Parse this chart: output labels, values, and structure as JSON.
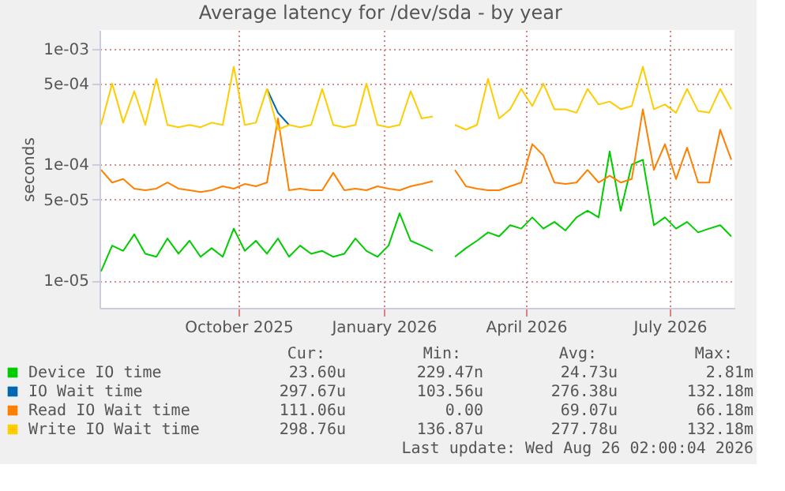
{
  "chart_data": {
    "type": "line",
    "title": "Average latency for /dev/sda - by year",
    "ylabel": "seconds",
    "log": true,
    "grid": true,
    "legend": "bottom",
    "xlim": [
      "2025-07-20",
      "2026-08-26"
    ],
    "xticks": [
      {
        "value": "2025-10-16",
        "label": "October 2025"
      },
      {
        "value": "2026-01-16",
        "label": "January 2026"
      },
      {
        "value": "2026-04-16",
        "label": "April 2026"
      },
      {
        "value": "2026-07-16",
        "label": "July 2026"
      }
    ],
    "ylim": [
      5.8e-06,
      0.00145
    ],
    "yticks": [
      {
        "value": 1e-05,
        "label": "1e-05"
      },
      {
        "value": 5e-05,
        "label": "5e-05"
      },
      {
        "value": 0.0001,
        "label": "1e-04"
      },
      {
        "value": 0.0005,
        "label": "5e-04"
      },
      {
        "value": 0.001,
        "label": "1e-03"
      }
    ],
    "x": [
      "2025-07-21",
      "2025-07-28",
      "2025-08-04",
      "2025-08-11",
      "2025-08-18",
      "2025-08-25",
      "2025-09-01",
      "2025-09-08",
      "2025-09-15",
      "2025-09-22",
      "2025-09-29",
      "2025-10-06",
      "2025-10-13",
      "2025-10-20",
      "2025-10-27",
      "2025-11-03",
      "2025-11-10",
      "2025-11-17",
      "2025-11-24",
      "2025-12-01",
      "2025-12-08",
      "2025-12-15",
      "2025-12-22",
      "2025-12-29",
      "2026-01-05",
      "2026-01-12",
      "2026-01-19",
      "2026-01-26",
      "2026-02-02",
      "2026-02-09",
      "2026-02-16",
      "2026-02-23",
      "2026-03-02",
      "2026-03-09",
      "2026-03-16",
      "2026-03-23",
      "2026-03-30",
      "2026-04-06",
      "2026-04-13",
      "2026-04-20",
      "2026-04-27",
      "2026-05-04",
      "2026-05-11",
      "2026-05-18",
      "2026-05-25",
      "2026-06-01",
      "2026-06-08",
      "2026-06-15",
      "2026-06-22",
      "2026-06-29",
      "2026-07-06",
      "2026-07-13",
      "2026-07-20",
      "2026-07-27",
      "2026-08-03",
      "2026-08-10",
      "2026-08-17",
      "2026-08-24"
    ],
    "series": [
      {
        "name": "Device IO time",
        "color": "#00cc00",
        "values": [
          1.2e-05,
          2e-05,
          1.8e-05,
          2.5e-05,
          1.7e-05,
          1.6e-05,
          2.3e-05,
          1.7e-05,
          2.2e-05,
          1.6e-05,
          1.9e-05,
          1.6e-05,
          2.8e-05,
          1.8e-05,
          2.2e-05,
          1.7e-05,
          2.3e-05,
          1.6e-05,
          2e-05,
          1.7e-05,
          1.8e-05,
          1.6e-05,
          1.7e-05,
          2.3e-05,
          1.8e-05,
          1.6e-05,
          2e-05,
          3.8e-05,
          2.2e-05,
          2e-05,
          1.8e-05,
          null,
          1.6e-05,
          1.9e-05,
          2.2e-05,
          2.6e-05,
          2.4e-05,
          3e-05,
          2.8e-05,
          3.5e-05,
          2.8e-05,
          3.2e-05,
          2.7e-05,
          3.5e-05,
          4e-05,
          3.5e-05,
          0.00013,
          4e-05,
          0.0001,
          0.00011,
          3e-05,
          3.5e-05,
          2.8e-05,
          3.2e-05,
          2.6e-05,
          2.8e-05,
          3e-05,
          2.4e-05
        ]
      },
      {
        "name": "IO Wait time",
        "color": "#0066b3",
        "values": [
          null,
          null,
          null,
          null,
          null,
          null,
          null,
          null,
          null,
          null,
          null,
          null,
          null,
          null,
          null,
          0.00045,
          0.00028,
          0.00022,
          null,
          null,
          null,
          null,
          null,
          null,
          null,
          null,
          null,
          null,
          null,
          null,
          null,
          null,
          null,
          null,
          null,
          null,
          null,
          null,
          null,
          null,
          null,
          null,
          null,
          null,
          null,
          null,
          null,
          null,
          null,
          null,
          null,
          null,
          null,
          null,
          null,
          null,
          null,
          null
        ]
      },
      {
        "name": "Read IO Wait time",
        "color": "#ff8000",
        "values": [
          9e-05,
          7e-05,
          7.5e-05,
          6.2e-05,
          6e-05,
          6.2e-05,
          7e-05,
          6.2e-05,
          6e-05,
          5.8e-05,
          6e-05,
          6.5e-05,
          6.2e-05,
          6.8e-05,
          6.5e-05,
          7e-05,
          0.00025,
          6e-05,
          6.2e-05,
          6e-05,
          6e-05,
          8.5e-05,
          6e-05,
          6.2e-05,
          6e-05,
          6.5e-05,
          6.2e-05,
          6e-05,
          6.5e-05,
          6.8e-05,
          7.2e-05,
          null,
          9e-05,
          6.5e-05,
          6.2e-05,
          6e-05,
          6e-05,
          6.5e-05,
          7e-05,
          0.00015,
          0.00012,
          7e-05,
          6.8e-05,
          7e-05,
          9e-05,
          7e-05,
          8e-05,
          7e-05,
          7.5e-05,
          0.0003,
          9e-05,
          0.00015,
          7.5e-05,
          0.00014,
          7e-05,
          7e-05,
          0.0002,
          0.00011
        ]
      },
      {
        "name": "Write IO Wait time",
        "color": "#ffcc00",
        "values": [
          0.00022,
          0.0005,
          0.00023,
          0.00043,
          0.00022,
          0.00055,
          0.00022,
          0.00021,
          0.00022,
          0.00021,
          0.00023,
          0.00022,
          0.0007,
          0.00022,
          0.00023,
          0.00045,
          0.0002,
          0.00022,
          0.00021,
          0.00022,
          0.00045,
          0.00022,
          0.00021,
          0.00022,
          0.0005,
          0.00022,
          0.00021,
          0.00022,
          0.00043,
          0.00025,
          0.00026,
          null,
          0.00022,
          0.0002,
          0.00022,
          0.00055,
          0.00025,
          0.0003,
          0.00045,
          0.00032,
          0.0005,
          0.0003,
          0.0003,
          0.00028,
          0.00045,
          0.00033,
          0.00035,
          0.0003,
          0.00032,
          0.0007,
          0.0003,
          0.00033,
          0.00028,
          0.00045,
          0.00029,
          0.00028,
          0.00045,
          0.0003
        ]
      }
    ],
    "annotations": [
      "Cur:",
      "Min:",
      "Avg:",
      "Max:",
      "23.60u",
      "229.47n",
      "24.73u",
      "2.81m",
      "297.67u",
      "103.56u",
      "276.38u",
      "132.18m",
      "111.06u",
      "0.00",
      "69.07u",
      "66.18m",
      "298.76u",
      "136.87u",
      "277.78u",
      "132.18m",
      "Last update: Wed Aug 26 02:00:04 2026"
    ]
  }
}
